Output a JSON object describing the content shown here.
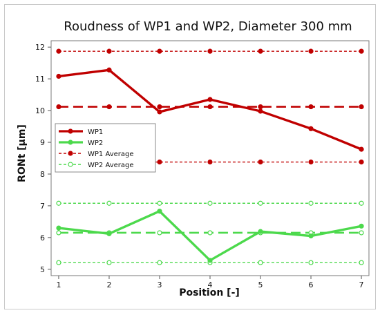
{
  "chart_data": {
    "type": "line",
    "title": "Roudness of WP1 and WP2, Diameter 300 mm",
    "xlabel": "Position [-]",
    "ylabel": "RONt [µm]",
    "x": [
      1,
      2,
      3,
      4,
      5,
      6,
      7
    ],
    "xticks": [
      "1",
      "2",
      "3",
      "4",
      "5",
      "6",
      "7"
    ],
    "yticks": [
      "5",
      "6",
      "7",
      "8",
      "9",
      "10",
      "11",
      "12"
    ],
    "xlim": [
      0.85,
      7.15
    ],
    "ylim": [
      4.8,
      12.2
    ],
    "grid": false,
    "legend_position": "left",
    "series": [
      {
        "name": "WP1",
        "values": [
          11.08,
          11.28,
          9.96,
          10.35,
          9.98,
          9.43,
          8.78
        ],
        "color": "#c00000",
        "style": "solid-thick",
        "marker": "filled"
      },
      {
        "name": "WP2",
        "values": [
          6.3,
          6.12,
          6.83,
          5.28,
          6.19,
          6.05,
          6.36
        ],
        "color": "#4cd94c",
        "style": "solid-thick",
        "marker": "filled"
      },
      {
        "name": "WP1 Average",
        "mean": 10.12,
        "upper": 11.87,
        "lower": 8.38,
        "color": "#c00000",
        "style": "dashed",
        "marker": "filled"
      },
      {
        "name": "WP2 Average",
        "mean": 6.15,
        "upper": 7.08,
        "lower": 5.21,
        "color": "#4cd94c",
        "style": "dashed",
        "marker": "open"
      }
    ]
  }
}
